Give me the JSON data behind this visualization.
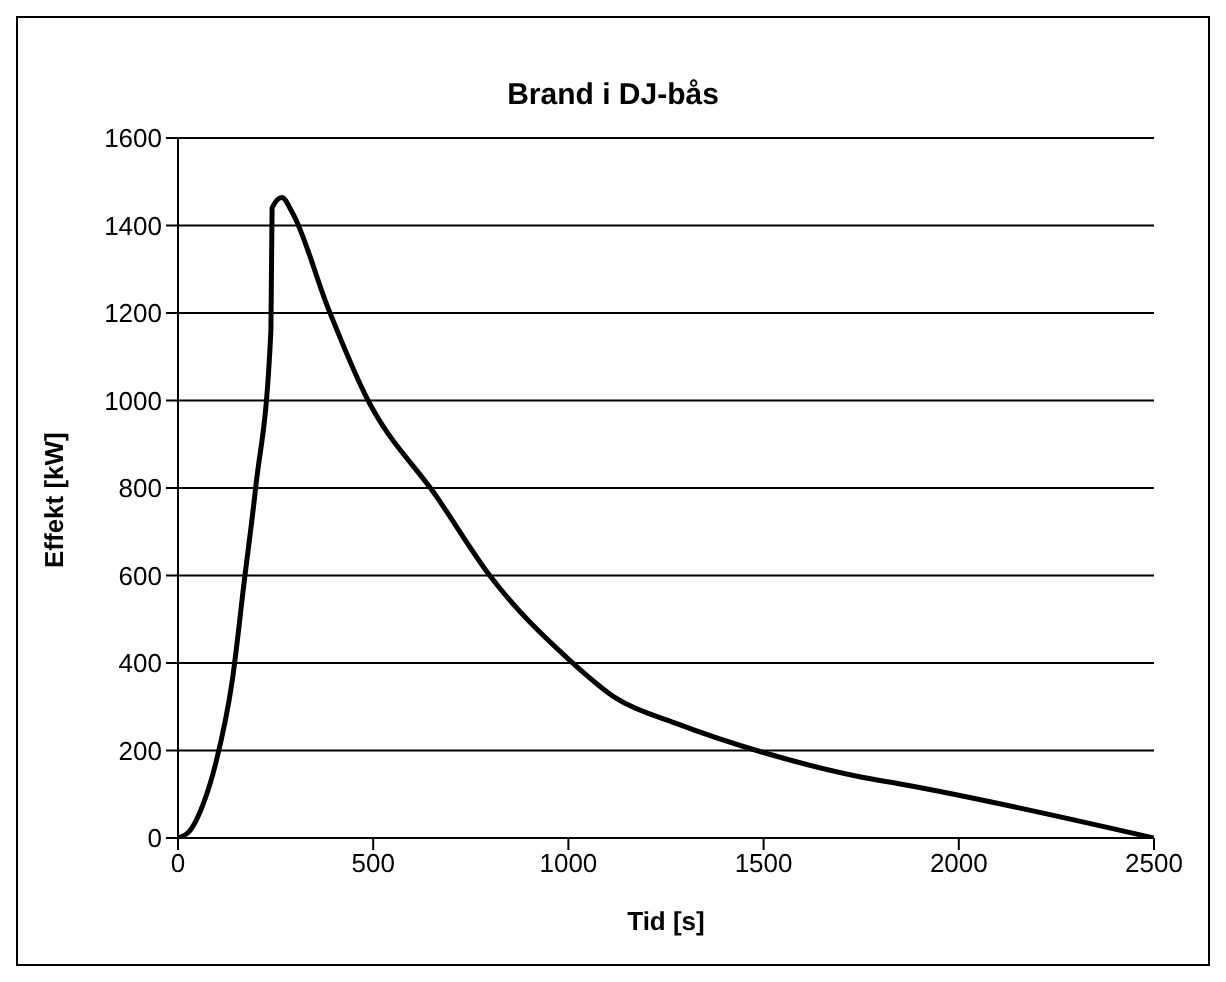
{
  "chart_data": {
    "type": "line",
    "title": "Brand i DJ-bås",
    "xlabel": "Tid [s]",
    "ylabel": "Effekt [kW]",
    "x": [
      0,
      30,
      63,
      97,
      139,
      170,
      199,
      238,
      241,
      266,
      292,
      385,
      479,
      665,
      801,
      1000,
      1123,
      1276,
      1497,
      1752,
      1854,
      2500
    ],
    "series": [
      {
        "color": "#000000",
        "values": [
          0,
          16,
          74,
          172,
          360,
          589,
          801,
          1161,
          1440,
          1464,
          1431,
          1210,
          1014,
          777,
          597,
          409,
          319,
          262,
          196,
          139,
          123,
          0
        ]
      }
    ],
    "xlim": [
      0,
      2500
    ],
    "xticks": [
      0,
      500,
      1000,
      1500,
      2000,
      2500
    ],
    "ylim": [
      0,
      1600
    ],
    "yticks": [
      0,
      200,
      400,
      600,
      800,
      1000,
      1200,
      1400,
      1600
    ],
    "grid": "y",
    "legend": false,
    "marker": "none",
    "line_style": "solid"
  }
}
